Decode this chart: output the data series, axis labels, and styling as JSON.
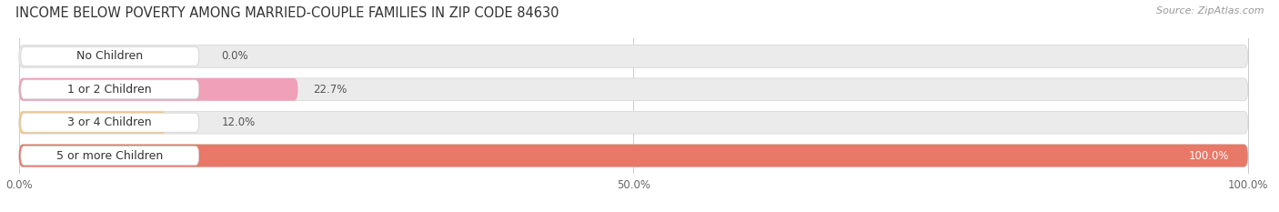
{
  "title": "INCOME BELOW POVERTY AMONG MARRIED-COUPLE FAMILIES IN ZIP CODE 84630",
  "source": "Source: ZipAtlas.com",
  "categories": [
    "No Children",
    "1 or 2 Children",
    "3 or 4 Children",
    "5 or more Children"
  ],
  "values": [
    0.0,
    22.7,
    12.0,
    100.0
  ],
  "bar_colors": [
    "#a8a8d8",
    "#f0a0b8",
    "#f5c888",
    "#e87868"
  ],
  "bar_bg_color": "#ebebeb",
  "label_bg_color": "#ffffff",
  "xtick_labels": [
    "0.0%",
    "50.0%",
    "100.0%"
  ],
  "title_fontsize": 10.5,
  "label_fontsize": 9,
  "value_fontsize": 8.5,
  "tick_fontsize": 8.5,
  "source_fontsize": 8,
  "background_color": "#ffffff"
}
